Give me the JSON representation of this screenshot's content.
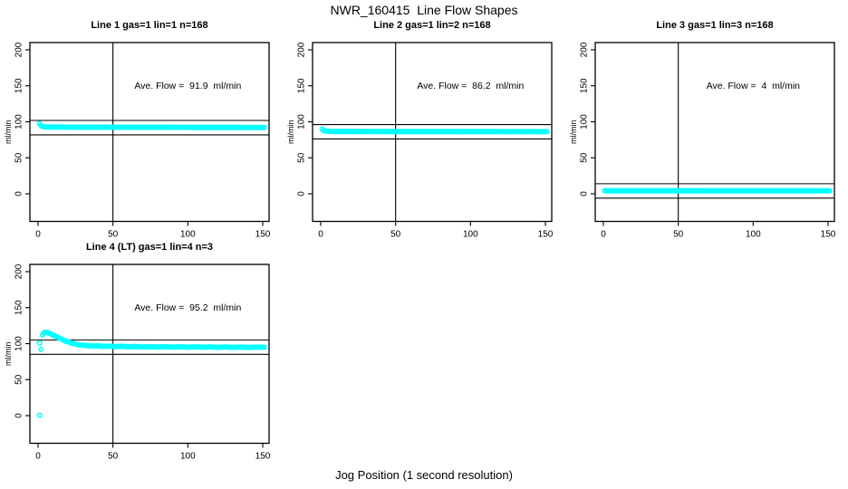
{
  "figure": {
    "title": "NWR_160415  Line Flow Shapes",
    "xlabel": "Jog Position (1 second resolution)",
    "background": "#FFFFFF",
    "point_color": "#00FFFF",
    "line_color": "#000000"
  },
  "chart_data": [
    {
      "type": "scatter",
      "title": "Line 1 gas=1 lin=1 n=168",
      "annotation": "Ave. Flow =  91.9  ml/min",
      "ave_flow_ml_min": 91.9,
      "ylabel": "ml/min",
      "x_ticks": [
        0,
        50,
        100,
        150
      ],
      "y_ticks": [
        0,
        50,
        100,
        150,
        200
      ],
      "xlim": [
        -5.5,
        153.6
      ],
      "ylim": [
        -38,
        210
      ],
      "grid": {
        "row": 0,
        "col": 0
      },
      "vline_x": 50,
      "hlines": [
        101.9,
        81.9
      ],
      "annotation_at": {
        "x": 100,
        "y": 150
      },
      "series": {
        "marker": "open-circle",
        "x_start": 1,
        "x_end": 151,
        "x_step": 1,
        "profile": [
          [
            1,
            97.5
          ],
          [
            2,
            94.8
          ],
          [
            3,
            93.5
          ],
          [
            5,
            92.9
          ],
          [
            8,
            92.7
          ],
          [
            20,
            92.6
          ],
          [
            60,
            92.4
          ],
          [
            151,
            92.1
          ]
        ]
      },
      "extra_points": []
    },
    {
      "type": "scatter",
      "title": "Line 2 gas=1 lin=2 n=168",
      "annotation": "Ave. Flow =  86.2  ml/min",
      "ave_flow_ml_min": 86.2,
      "ylabel": "ml/min",
      "x_ticks": [
        0,
        50,
        100,
        150
      ],
      "y_ticks": [
        0,
        50,
        100,
        150,
        200
      ],
      "xlim": [
        -5.5,
        153.6
      ],
      "ylim": [
        -38,
        210
      ],
      "grid": {
        "row": 0,
        "col": 1
      },
      "vline_x": 50,
      "hlines": [
        96.2,
        76.2
      ],
      "annotation_at": {
        "x": 100,
        "y": 150
      },
      "series": {
        "marker": "open-circle",
        "x_start": 1,
        "x_end": 151,
        "x_step": 1,
        "profile": [
          [
            1,
            89.8
          ],
          [
            2,
            88.0
          ],
          [
            3,
            87.2
          ],
          [
            5,
            86.8
          ],
          [
            8,
            86.6
          ],
          [
            20,
            86.5
          ],
          [
            60,
            86.4
          ],
          [
            151,
            86.3
          ]
        ]
      },
      "extra_points": []
    },
    {
      "type": "scatter",
      "title": "Line 3 gas=1 lin=3 n=168",
      "annotation": "Ave. Flow =  4  ml/min",
      "ave_flow_ml_min": 4,
      "ylabel": "ml/min",
      "x_ticks": [
        0,
        50,
        100,
        150
      ],
      "y_ticks": [
        0,
        50,
        100,
        150,
        200
      ],
      "xlim": [
        -5.5,
        153.6
      ],
      "ylim": [
        -38,
        210
      ],
      "grid": {
        "row": 0,
        "col": 2
      },
      "vline_x": 50,
      "hlines": [
        14,
        -6
      ],
      "annotation_at": {
        "x": 100,
        "y": 150
      },
      "series": {
        "marker": "open-circle",
        "x_start": 1,
        "x_end": 151,
        "x_step": 1,
        "profile": [
          [
            1,
            4.2
          ],
          [
            151,
            4.2
          ]
        ]
      },
      "extra_points": []
    },
    {
      "type": "scatter",
      "title": "Line 4 (LT) gas=1 lin=4 n=3",
      "annotation": "Ave. Flow =  95.2  ml/min",
      "ave_flow_ml_min": 95.2,
      "ylabel": "ml/min",
      "x_ticks": [
        0,
        50,
        100,
        150
      ],
      "y_ticks": [
        0,
        50,
        100,
        150,
        200
      ],
      "xlim": [
        -5.5,
        153.6
      ],
      "ylim": [
        -38,
        210
      ],
      "grid": {
        "row": 1,
        "col": 0
      },
      "vline_x": 50,
      "hlines": [
        105.2,
        85.2
      ],
      "annotation_at": {
        "x": 100,
        "y": 150
      },
      "series": {
        "marker": "open-circle",
        "x_start": 3,
        "x_end": 151,
        "x_step": 1,
        "profile": [
          [
            3,
            112
          ],
          [
            4,
            115
          ],
          [
            5,
            116
          ],
          [
            6,
            115.5
          ],
          [
            7,
            114.8
          ],
          [
            8,
            114
          ],
          [
            10,
            112
          ],
          [
            12,
            110
          ],
          [
            14,
            108
          ],
          [
            16,
            106
          ],
          [
            18,
            104
          ],
          [
            20,
            102.5
          ],
          [
            22,
            101
          ],
          [
            24,
            100
          ],
          [
            26,
            99
          ],
          [
            28,
            98.3
          ],
          [
            30,
            97.8
          ],
          [
            33,
            97.2
          ],
          [
            36,
            96.8
          ],
          [
            40,
            96.9
          ],
          [
            44,
            96.2
          ],
          [
            48,
            96.5
          ],
          [
            52,
            95.9
          ],
          [
            56,
            96.3
          ],
          [
            60,
            95.7
          ],
          [
            65,
            96.0
          ],
          [
            70,
            95.4
          ],
          [
            75,
            95.8
          ],
          [
            80,
            95.3
          ],
          [
            85,
            95.7
          ],
          [
            90,
            95.2
          ],
          [
            95,
            95.6
          ],
          [
            100,
            95.1
          ],
          [
            105,
            95.5
          ],
          [
            110,
            95.0
          ],
          [
            115,
            95.4
          ],
          [
            120,
            94.9
          ],
          [
            125,
            95.3
          ],
          [
            130,
            94.8
          ],
          [
            135,
            95.2
          ],
          [
            140,
            94.8
          ],
          [
            145,
            95.1
          ],
          [
            151,
            94.9
          ]
        ]
      },
      "extra_points": [
        [
          1,
          0.5
        ],
        [
          1,
          101
        ],
        [
          2,
          92
        ]
      ]
    }
  ]
}
